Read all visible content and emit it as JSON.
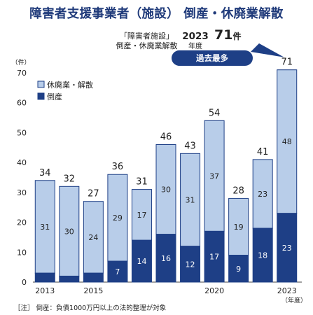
{
  "title": "障害者支援事業者（施設） 倒産・休廃業解散",
  "subtitle": {
    "label_line1": "「障害者施設」",
    "label_line2": "倒産・休廃業解散",
    "year": "2023",
    "year_suffix": "年度",
    "count": "71",
    "count_unit": "件",
    "badge": "過去最多"
  },
  "note": "［注］ 倒産：負債1000万円以上の法的整理が対象",
  "chart_data": {
    "type": "bar",
    "stacked": true,
    "categories": [
      "2013",
      "2014",
      "2015",
      "2016",
      "2017",
      "2018",
      "2019",
      "2020",
      "2021",
      "2022",
      "2023"
    ],
    "x_tick_labels": [
      "2013",
      "",
      "2015",
      "",
      "",
      "",
      "",
      "2020",
      "",
      "",
      "2023"
    ],
    "xlabel": "（年度）",
    "ylabel": "（件）",
    "ylim": [
      0,
      70
    ],
    "yticks": [
      0,
      10,
      20,
      30,
      40,
      50,
      60,
      70
    ],
    "series": [
      {
        "name": "倒産",
        "color": "#1e3f86",
        "values": [
          3,
          2,
          3,
          7,
          14,
          16,
          12,
          17,
          9,
          18,
          23
        ],
        "show_labels": [
          false,
          false,
          false,
          true,
          true,
          true,
          true,
          true,
          true,
          true,
          true
        ]
      },
      {
        "name": "休廃業・解散",
        "color": "#b8cde9",
        "values": [
          31,
          30,
          24,
          29,
          17,
          30,
          31,
          37,
          19,
          23,
          48
        ],
        "show_labels": [
          true,
          true,
          true,
          true,
          true,
          true,
          true,
          true,
          true,
          true,
          true
        ]
      }
    ],
    "totals": [
      34,
      32,
      27,
      36,
      31,
      46,
      43,
      54,
      28,
      41,
      71
    ],
    "legend": [
      {
        "name": "休廃業・解散",
        "color": "#b8cde9"
      },
      {
        "name": "倒産",
        "color": "#1e3f86"
      }
    ],
    "legend_position": "top-left",
    "grid": false
  }
}
